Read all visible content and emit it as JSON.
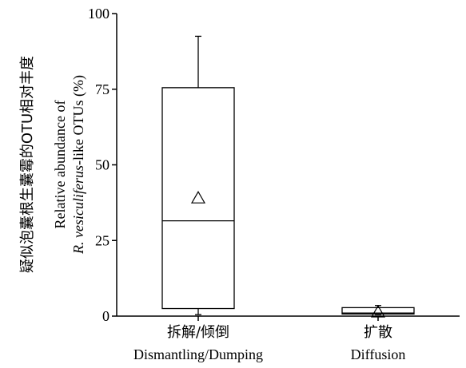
{
  "chart_data": {
    "type": "boxplot",
    "ylabel": {
      "zh": "疑似泡囊根生囊霉的OTU相对丰度",
      "en_line1": "Relative abundance of",
      "en_line2_italic": "R. vesiculiferus",
      "en_line2_rest": "-like OTUs (%)"
    },
    "ylim": [
      0,
      100
    ],
    "yticks": [
      0,
      25,
      50,
      75,
      100
    ],
    "categories": [
      {
        "zh": "拆解/倾倒",
        "en": "Dismantling/Dumping"
      },
      {
        "zh": "扩散",
        "en": "Diffusion"
      }
    ],
    "boxes": [
      {
        "whisker_low": 0.5,
        "q1": 2.5,
        "median": 31.5,
        "q3": 75.5,
        "whisker_high": 92.5,
        "mean": 39
      },
      {
        "whisker_low": 0.5,
        "q1": 0.7,
        "median": 1.0,
        "q3": 2.8,
        "whisker_high": 3.5,
        "mean": 1.3
      }
    ],
    "colors": {
      "stroke": "#000000",
      "background": "#ffffff"
    }
  }
}
